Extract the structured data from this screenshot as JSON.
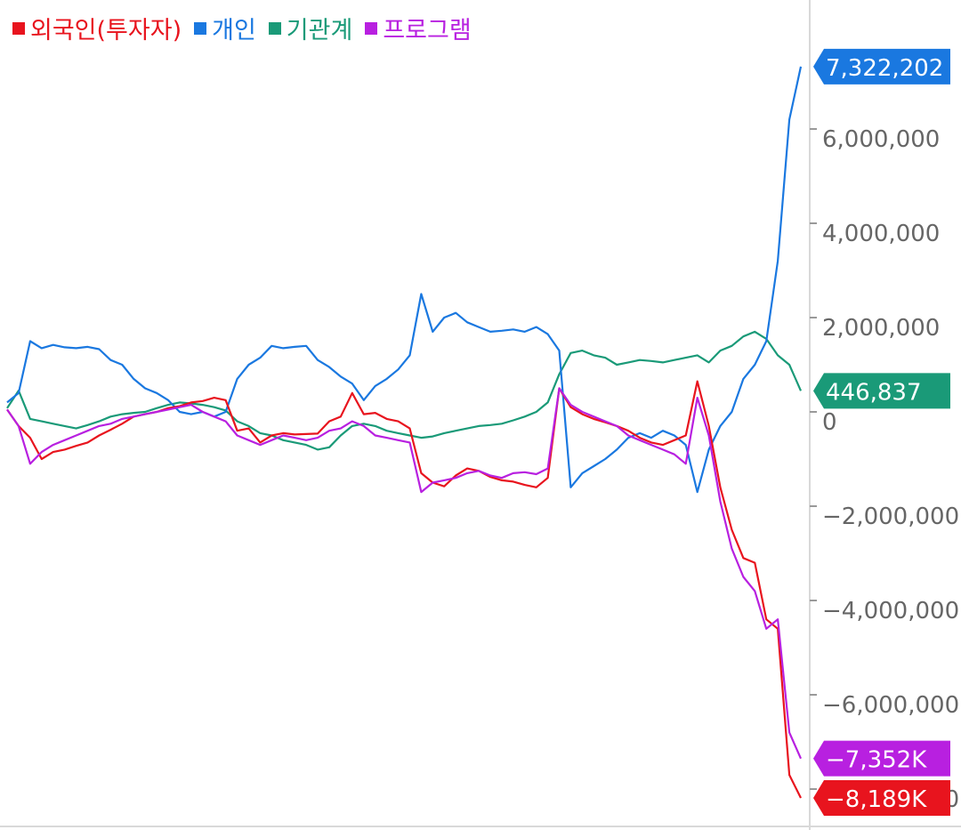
{
  "chart_data": {
    "type": "line",
    "title": "",
    "xlabel": "",
    "ylabel": "",
    "ylim": [
      -8300000,
      7800000
    ],
    "yticks": [
      -8000000,
      -6000000,
      -4000000,
      -2000000,
      0,
      2000000,
      4000000,
      6000000
    ],
    "ytick_labels": [
      "−8,000,000",
      "−6,000,000",
      "−4,000,000",
      "−2,000,000",
      "0",
      "2,000,000",
      "4,000,000",
      "6,000,000"
    ],
    "legend_position": "top-left",
    "grid": false,
    "series": [
      {
        "name": "외국인(투자자)",
        "color": "#e8141e",
        "end_label": "−8,189K",
        "values": [
          50000,
          -300000,
          -550000,
          -1000000,
          -850000,
          -800000,
          -720000,
          -650000,
          -500000,
          -380000,
          -250000,
          -100000,
          -50000,
          0,
          80000,
          120000,
          200000,
          230000,
          300000,
          250000,
          -400000,
          -350000,
          -650000,
          -500000,
          -450000,
          -480000,
          -470000,
          -460000,
          -200000,
          -100000,
          400000,
          -50000,
          -20000,
          -150000,
          -200000,
          -350000,
          -1300000,
          -1500000,
          -1580000,
          -1350000,
          -1200000,
          -1250000,
          -1380000,
          -1450000,
          -1480000,
          -1550000,
          -1600000,
          -1400000,
          500000,
          100000,
          -50000,
          -150000,
          -220000,
          -300000,
          -400000,
          -550000,
          -650000,
          -700000,
          -600000,
          -500000,
          650000,
          -300000,
          -1600000,
          -2500000,
          -3100000,
          -3200000,
          -4400000,
          -4600000,
          -7700000,
          -8189000
        ]
      },
      {
        "name": "개인",
        "color": "#1a78e0",
        "end_label": "7,322,202",
        "values": [
          200000,
          400000,
          1500000,
          1350000,
          1420000,
          1370000,
          1350000,
          1380000,
          1330000,
          1100000,
          1000000,
          700000,
          500000,
          400000,
          250000,
          0,
          -50000,
          0,
          -100000,
          0,
          700000,
          1000000,
          1150000,
          1400000,
          1350000,
          1380000,
          1400000,
          1100000,
          950000,
          750000,
          600000,
          250000,
          550000,
          700000,
          900000,
          1200000,
          2500000,
          1700000,
          2000000,
          2100000,
          1900000,
          1800000,
          1700000,
          1720000,
          1750000,
          1700000,
          1800000,
          1650000,
          1300000,
          -1600000,
          -1300000,
          -1150000,
          -1000000,
          -800000,
          -550000,
          -450000,
          -550000,
          -400000,
          -500000,
          -700000,
          -1700000,
          -800000,
          -300000,
          0,
          700000,
          1000000,
          1500000,
          3200000,
          6200000,
          7322202
        ]
      },
      {
        "name": "기관계",
        "color": "#1a9a78",
        "end_label": "446,837",
        "values": [
          80000,
          450000,
          -150000,
          -200000,
          -250000,
          -300000,
          -350000,
          -280000,
          -200000,
          -100000,
          -50000,
          -20000,
          0,
          80000,
          150000,
          200000,
          180000,
          150000,
          100000,
          30000,
          -200000,
          -300000,
          -450000,
          -500000,
          -600000,
          -650000,
          -700000,
          -800000,
          -750000,
          -500000,
          -300000,
          -250000,
          -300000,
          -400000,
          -450000,
          -500000,
          -550000,
          -520000,
          -450000,
          -400000,
          -350000,
          -300000,
          -280000,
          -250000,
          -180000,
          -100000,
          0,
          200000,
          800000,
          1250000,
          1300000,
          1200000,
          1150000,
          1000000,
          1050000,
          1100000,
          1080000,
          1050000,
          1100000,
          1150000,
          1200000,
          1050000,
          1300000,
          1400000,
          1600000,
          1700000,
          1550000,
          1200000,
          1000000,
          446837
        ]
      },
      {
        "name": "프로그램",
        "color": "#b820e0",
        "end_label": "−7,352K",
        "values": [
          50000,
          -300000,
          -1100000,
          -850000,
          -700000,
          -600000,
          -500000,
          -400000,
          -300000,
          -250000,
          -150000,
          -100000,
          -50000,
          0,
          50000,
          100000,
          150000,
          0,
          -100000,
          -200000,
          -500000,
          -600000,
          -700000,
          -600000,
          -500000,
          -550000,
          -600000,
          -550000,
          -400000,
          -350000,
          -200000,
          -300000,
          -500000,
          -550000,
          -600000,
          -650000,
          -1700000,
          -1500000,
          -1450000,
          -1400000,
          -1300000,
          -1250000,
          -1350000,
          -1400000,
          -1300000,
          -1280000,
          -1320000,
          -1200000,
          500000,
          150000,
          0,
          -100000,
          -200000,
          -300000,
          -500000,
          -600000,
          -700000,
          -800000,
          -900000,
          -1100000,
          300000,
          -500000,
          -1900000,
          -2900000,
          -3500000,
          -3800000,
          -4600000,
          -4400000,
          -6800000,
          -7352000
        ]
      }
    ]
  }
}
